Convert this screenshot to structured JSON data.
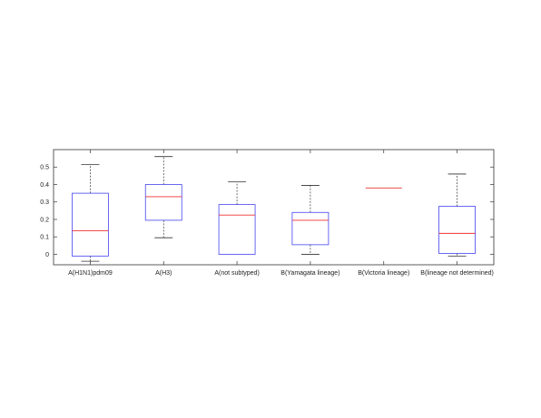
{
  "chart_data": {
    "type": "box",
    "title": "",
    "xlabel": "",
    "ylabel": "",
    "ylim": [
      -0.06,
      0.6
    ],
    "yticks": [
      0,
      0.1,
      0.2,
      0.3,
      0.4,
      0.5
    ],
    "grid": false,
    "categories": [
      "A(H1N1)pdm09",
      "A(H3)",
      "A(not subtyped)",
      "B(Yamagata lineage)",
      "B(Victoria lineage)",
      "B(lineage not determined)"
    ],
    "boxes": [
      {
        "category": "A(H1N1)pdm09",
        "whisker_low": -0.04,
        "q1": -0.01,
        "median": 0.135,
        "q3": 0.35,
        "whisker_high": 0.515
      },
      {
        "category": "A(H3)",
        "whisker_low": 0.095,
        "q1": 0.195,
        "median": 0.33,
        "q3": 0.4,
        "whisker_high": 0.56
      },
      {
        "category": "A(not subtyped)",
        "whisker_low": 0.0,
        "q1": 0.0,
        "median": 0.225,
        "q3": 0.285,
        "whisker_high": 0.415
      },
      {
        "category": "B(Yamagata lineage)",
        "whisker_low": 0.0,
        "q1": 0.055,
        "median": 0.195,
        "q3": 0.24,
        "whisker_high": 0.395
      },
      {
        "category": "B(Victoria lineage)",
        "whisker_low": 0.38,
        "q1": 0.38,
        "median": 0.38,
        "q3": 0.38,
        "whisker_high": 0.38
      },
      {
        "category": "B(lineage not determined)",
        "whisker_low": -0.01,
        "q1": 0.005,
        "median": 0.12,
        "q3": 0.275,
        "whisker_high": 0.46
      }
    ],
    "colors": {
      "box": "#4444ee",
      "median": "#ee3333",
      "whisker": "#333333",
      "axis": "#333333"
    }
  }
}
